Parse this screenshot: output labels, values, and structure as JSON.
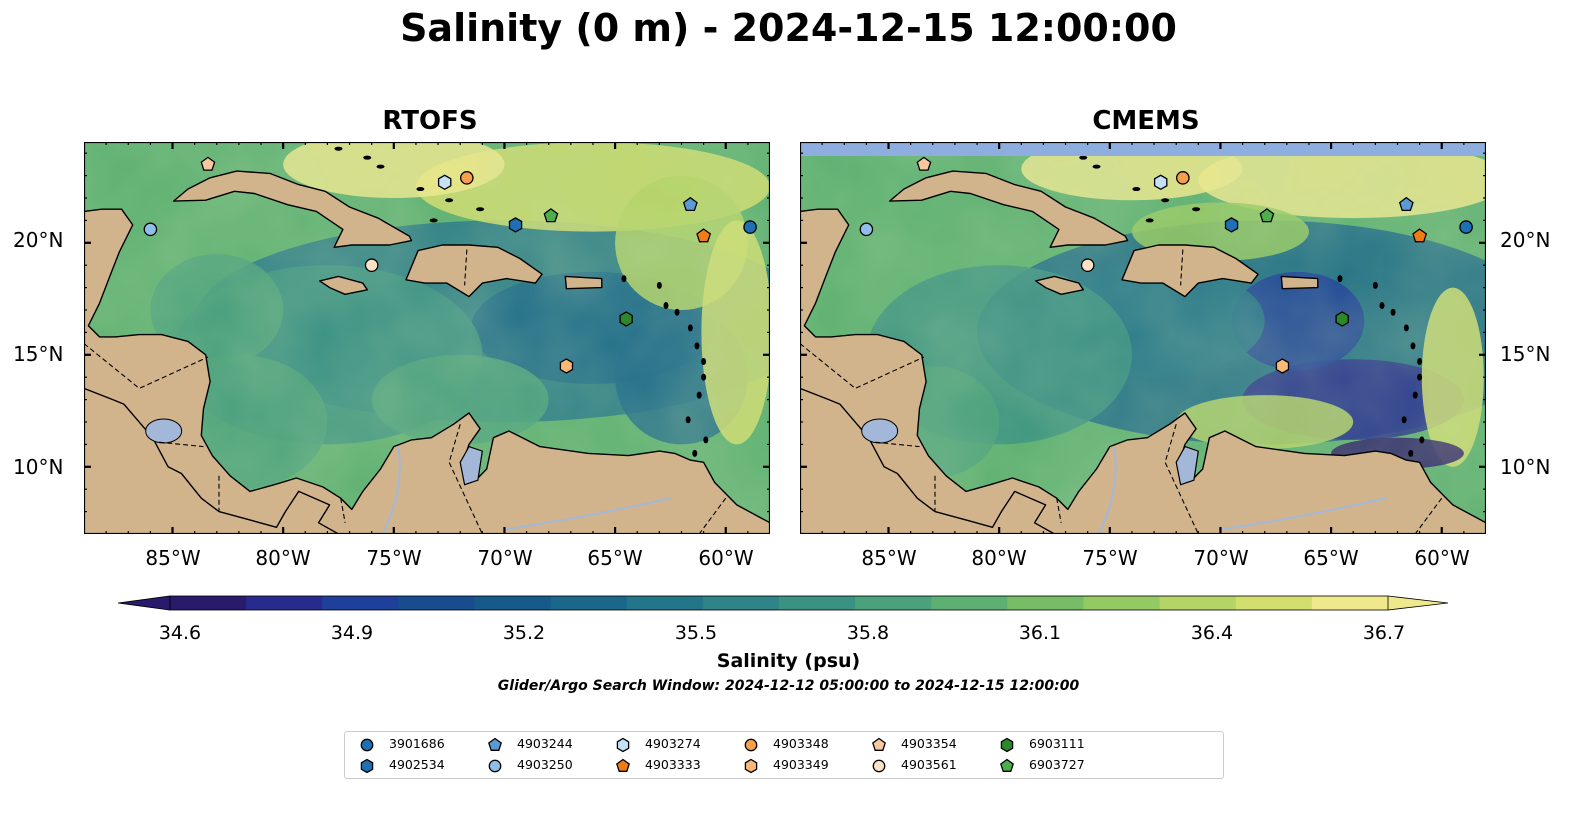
{
  "title": "Salinity (0 m) - 2024-12-15 12:00:00",
  "panels": [
    {
      "title": "RTOFS",
      "name": "rtofs"
    },
    {
      "title": "CMEMS",
      "name": "cmems"
    }
  ],
  "axes": {
    "longitude_ticks": [
      "85°W",
      "80°W",
      "75°W",
      "70°W",
      "65°W",
      "60°W"
    ],
    "latitude_ticks": [
      "20°N",
      "15°N",
      "10°N"
    ],
    "lon_range": [
      -89,
      -58
    ],
    "lat_range": [
      7,
      24.5
    ]
  },
  "colorbar": {
    "label": "Salinity (psu)",
    "ticks": [
      "34.6",
      "34.9",
      "35.2",
      "35.5",
      "35.8",
      "36.1",
      "36.4",
      "36.7"
    ],
    "range": [
      34.6,
      36.7
    ],
    "extend": "both",
    "colors": [
      "#2a1a6b",
      "#272b8e",
      "#1e3f9a",
      "#174c8f",
      "#16598a",
      "#1a6789",
      "#237689",
      "#2e8487",
      "#3a9283",
      "#4aa17b",
      "#5db071",
      "#77bd66",
      "#95c962",
      "#b5d466",
      "#d2de6e",
      "#f0e98c"
    ]
  },
  "search_window": "Glider/Argo Search Window: 2024-12-12 05:00:00 to 2024-12-15 12:00:00",
  "colors": {
    "land": "#d2b48c",
    "inland_water": "#a3b8d8",
    "no_data_band": "#8eaee0",
    "salinity_fresh": "#2a1a6b",
    "salinity_salty": "#f0e98c"
  },
  "legend": [
    {
      "id": "3901686",
      "marker": "circle",
      "color": "#1f6fb4"
    },
    {
      "id": "4902534",
      "marker": "hexagon",
      "color": "#1f6fb4"
    },
    {
      "id": "4903244",
      "marker": "pentagon",
      "color": "#5b9bd5"
    },
    {
      "id": "4903250",
      "marker": "circle",
      "color": "#8fbfe8"
    },
    {
      "id": "4903274",
      "marker": "hexagon",
      "color": "#c6e1f5"
    },
    {
      "id": "4903333",
      "marker": "pentagon",
      "color": "#f07d14"
    },
    {
      "id": "4903348",
      "marker": "circle",
      "color": "#f5a04a"
    },
    {
      "id": "4903349",
      "marker": "hexagon",
      "color": "#f8b878"
    },
    {
      "id": "4903354",
      "marker": "pentagon",
      "color": "#f8c9a0"
    },
    {
      "id": "4903561",
      "marker": "circle",
      "color": "#fde1c3"
    },
    {
      "id": "6903111",
      "marker": "hexagon",
      "color": "#2a8a2a"
    },
    {
      "id": "6903727",
      "marker": "pentagon",
      "color": "#4caf4c"
    }
  ],
  "floats": [
    {
      "id": "3901686",
      "lon": -58.9,
      "lat": 20.7
    },
    {
      "id": "4902534",
      "lon": -69.5,
      "lat": 20.8
    },
    {
      "id": "4903244",
      "lon": -61.6,
      "lat": 21.7
    },
    {
      "id": "4903250",
      "lon": -86.0,
      "lat": 20.6
    },
    {
      "id": "4903274",
      "lon": -72.7,
      "lat": 22.7
    },
    {
      "id": "4903333",
      "lon": -61.0,
      "lat": 20.3
    },
    {
      "id": "4903348",
      "lon": -71.7,
      "lat": 22.9
    },
    {
      "id": "4903349",
      "lon": -67.2,
      "lat": 14.5
    },
    {
      "id": "4903354",
      "lon": -83.4,
      "lat": 23.5
    },
    {
      "id": "4903561",
      "lon": -76.0,
      "lat": 19.0
    },
    {
      "id": "6903111",
      "lon": -64.5,
      "lat": 16.6
    },
    {
      "id": "6903727",
      "lon": -67.9,
      "lat": 21.2
    }
  ]
}
